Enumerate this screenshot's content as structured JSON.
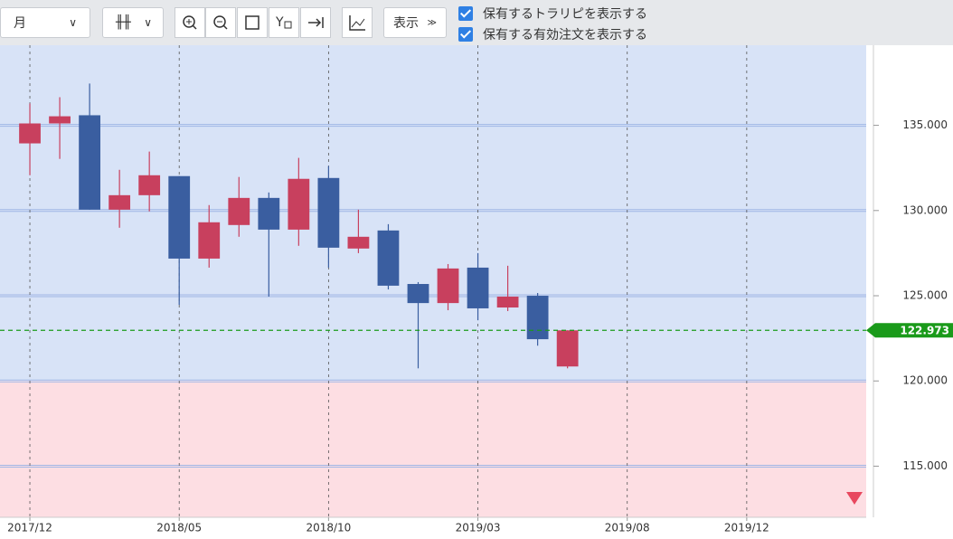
{
  "toolbar": {
    "period": "月",
    "display": "表示",
    "check1": "保有するトラリピを表示する",
    "check2": "保有する有効注文を表示する"
  },
  "chart_data": {
    "type": "candlestick",
    "x": [
      "2017/12",
      "2018/01",
      "2018/02",
      "2018/03",
      "2018/04",
      "2018/05",
      "2018/06",
      "2018/07",
      "2018/08",
      "2018/09",
      "2018/10",
      "2018/11",
      "2018/12",
      "2019/01",
      "2019/02",
      "2019/03",
      "2019/04",
      "2019/05",
      "2019/06"
    ],
    "open": [
      133.94,
      135.11,
      135.59,
      130.05,
      130.9,
      132.02,
      127.18,
      129.15,
      130.74,
      128.88,
      131.91,
      127.77,
      128.83,
      125.69,
      124.57,
      126.65,
      124.31,
      125.0,
      120.85
    ],
    "high": [
      136.28,
      136.65,
      137.45,
      132.39,
      133.46,
      132.02,
      130.32,
      131.97,
      131.06,
      133.09,
      132.61,
      130.05,
      129.2,
      125.8,
      126.86,
      127.5,
      126.76,
      125.16,
      122.97
    ],
    "low": [
      132.07,
      133.03,
      130.05,
      128.99,
      129.95,
      124.47,
      126.65,
      128.46,
      124.95,
      127.93,
      126.65,
      127.5,
      125.37,
      120.74,
      124.15,
      123.56,
      124.1,
      122.07,
      120.74
    ],
    "close": [
      135.11,
      135.53,
      130.05,
      130.9,
      132.07,
      127.18,
      129.31,
      130.74,
      128.88,
      131.86,
      127.82,
      128.46,
      125.59,
      124.57,
      126.6,
      124.26,
      124.95,
      122.45,
      122.97
    ],
    "up_color": "#c8405e",
    "down_color": "#3a5ea0",
    "xlim": [
      "2017/11",
      "2020/04"
    ],
    "xticks": [
      "2017/12",
      "2018/05",
      "2018/10",
      "2019/03",
      "2019/08",
      "2019/12"
    ],
    "ylim": [
      112,
      139.7
    ],
    "yticks": [
      {
        "value": 115,
        "label": "115.000"
      },
      {
        "value": 120,
        "label": "120.000"
      },
      {
        "value": 125,
        "label": "125.000"
      },
      {
        "value": 130,
        "label": "130.000"
      },
      {
        "value": 135,
        "label": "135.000"
      }
    ],
    "zones": [
      {
        "from": 120,
        "to": 139.7,
        "color": "#d8e3f7"
      },
      {
        "from": 112,
        "to": 120,
        "color": "#fddee3"
      }
    ],
    "current_price": 122.973,
    "current_color": "#1a9a1a",
    "grid": true
  }
}
